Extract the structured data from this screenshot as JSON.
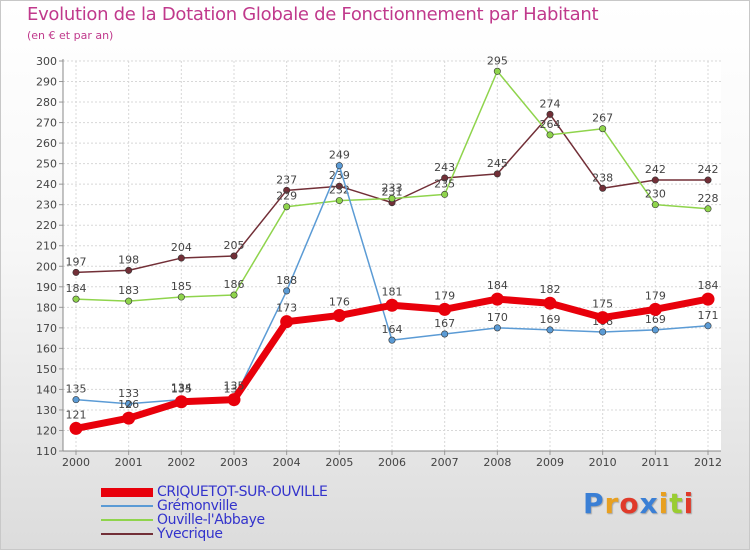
{
  "title": "Evolution de la Dotation Globale de Fonctionnement par Habitant",
  "subtitle": "(en € et par an)",
  "logo": {
    "text": "Proxiti",
    "letter_colors": [
      "#3a7fd5",
      "#e8a020",
      "#e03a2a",
      "#3a7fd5",
      "#e8a020",
      "#9acd32",
      "#e03a2a"
    ]
  },
  "chart_data": {
    "type": "line",
    "title": "Evolution de la Dotation Globale de Fonctionnement par Habitant",
    "ylabel": "(en € et par an)",
    "xlabel": "",
    "x": [
      "2000",
      "2001",
      "2002",
      "2003",
      "2004",
      "2005",
      "2006",
      "2007",
      "2008",
      "2009",
      "2010",
      "2011",
      "2012"
    ],
    "ylim": [
      110,
      300
    ],
    "yticks": [
      110,
      120,
      130,
      140,
      150,
      160,
      170,
      180,
      190,
      200,
      210,
      220,
      230,
      240,
      250,
      260,
      270,
      280,
      290,
      300
    ],
    "grid": true,
    "legend": "bottom-left",
    "series": [
      {
        "name": "Yvecrique",
        "color": "#722f37",
        "values": [
          197,
          198,
          204,
          205,
          237,
          239,
          231,
          243,
          245,
          274,
          238,
          242,
          242
        ]
      },
      {
        "name": "Ouville-l'Abbaye",
        "color": "#8fd44c",
        "values": [
          184,
          183,
          185,
          186,
          229,
          232,
          233,
          235,
          295,
          264,
          267,
          230,
          228
        ]
      },
      {
        "name": "Grémonville",
        "color": "#5b9bd5",
        "values": [
          135,
          133,
          135,
          135,
          188,
          249,
          164,
          167,
          170,
          169,
          168,
          169,
          171
        ]
      },
      {
        "name": "CRIQUETOT-SUR-OUVILLE",
        "color": "#e8000b",
        "values": [
          121,
          126,
          134,
          135,
          173,
          176,
          181,
          179,
          184,
          182,
          175,
          179,
          184
        ]
      }
    ]
  },
  "legend_items": [
    {
      "name": "CRIQUETOT-SUR-OUVILLE",
      "color": "#e8000b",
      "text_color": "#3333cc"
    },
    {
      "name": "Grémonville",
      "color": "#5b9bd5",
      "text_color": "#3333cc"
    },
    {
      "name": "Ouville-l'Abbaye",
      "color": "#8fd44c",
      "text_color": "#3333cc"
    },
    {
      "name": "Yvecrique",
      "color": "#722f37",
      "text_color": "#3333cc"
    }
  ]
}
